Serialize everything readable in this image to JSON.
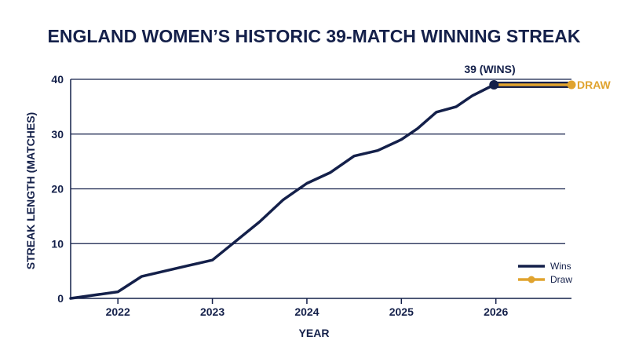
{
  "colors": {
    "navy": "#14204a",
    "gold": "#e0a32e",
    "grid": "#14204a"
  },
  "chart_data": {
    "type": "line",
    "title": "ENGLAND WOMEN’S HISTORIC 39-MATCH WINNING STREAK",
    "xlabel": "YEAR",
    "ylabel": "STREAK LENGTH (MATCHES)",
    "xlim": [
      2021.5,
      2026.8
    ],
    "ylim": [
      0,
      40
    ],
    "x_ticks": [
      "2022",
      "2023",
      "2024",
      "2025",
      "2026"
    ],
    "y_ticks": [
      "0",
      "10",
      "20",
      "30",
      "40"
    ],
    "grid": "horizontal",
    "legend_position": "bottom-right",
    "series": [
      {
        "name": "Wins",
        "color": "#14204a",
        "x": [
          2021.5,
          2022.0,
          2022.25,
          2022.5,
          2022.75,
          2023.0,
          2023.25,
          2023.5,
          2023.75,
          2024.0,
          2024.25,
          2024.5,
          2024.75,
          2025.0,
          2025.17,
          2025.37,
          2025.58,
          2025.75,
          2025.98
        ],
        "y": [
          0,
          1.2,
          4,
          5,
          6,
          7,
          10.5,
          14,
          18,
          21,
          23,
          26,
          27,
          29,
          31,
          34,
          35,
          37,
          39
        ]
      },
      {
        "name": "Draw",
        "color": "#e0a32e",
        "x": [
          2025.98,
          2026.8
        ],
        "y": [
          39,
          39
        ]
      }
    ],
    "annotations": [
      {
        "text": "39 (WINS)",
        "x": 2025.98,
        "y": 39
      },
      {
        "text": "DRAW",
        "x": 2026.8,
        "y": 39
      }
    ]
  }
}
